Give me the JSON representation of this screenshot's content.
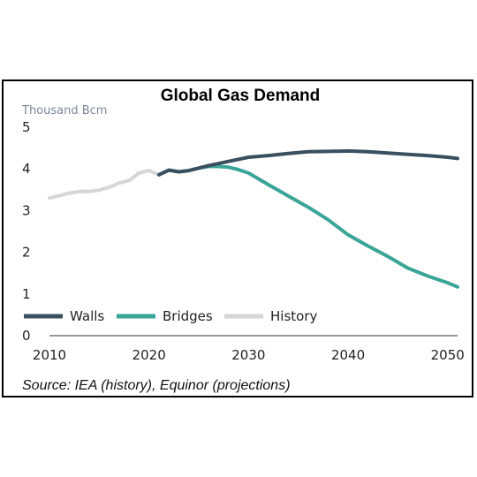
{
  "chart_data": {
    "type": "line",
    "title": "Global Gas Demand",
    "ylabel": "Thousand Bcm",
    "xlabel": "",
    "source": "Source: IEA (history), Equinor (projections)",
    "xlim": [
      2010,
      2051
    ],
    "ylim": [
      0,
      5
    ],
    "xticks": [
      2010,
      2020,
      2030,
      2040,
      2050
    ],
    "yticks": [
      0,
      1,
      2,
      3,
      4,
      5
    ],
    "grid": false,
    "legend_position": "bottom-left",
    "series": [
      {
        "name": "Walls",
        "color": "#3a5060",
        "x": [
          2021,
          2022,
          2023,
          2024,
          2025,
          2026,
          2028,
          2030,
          2032,
          2034,
          2036,
          2038,
          2040,
          2042,
          2044,
          2046,
          2048,
          2050,
          2051
        ],
        "y": [
          3.86,
          3.97,
          3.93,
          3.96,
          4.02,
          4.08,
          4.18,
          4.28,
          4.32,
          4.37,
          4.41,
          4.42,
          4.43,
          4.41,
          4.38,
          4.35,
          4.32,
          4.28,
          4.25
        ]
      },
      {
        "name": "Bridges",
        "color": "#3aa597",
        "x": [
          2021,
          2022,
          2023,
          2024,
          2025,
          2026,
          2027,
          2028,
          2029,
          2030,
          2032,
          2034,
          2036,
          2038,
          2040,
          2042,
          2044,
          2046,
          2048,
          2050,
          2051
        ],
        "y": [
          3.86,
          3.97,
          3.93,
          3.96,
          4.02,
          4.06,
          4.06,
          4.04,
          3.98,
          3.9,
          3.62,
          3.35,
          3.08,
          2.78,
          2.42,
          2.15,
          1.9,
          1.62,
          1.43,
          1.27,
          1.17
        ]
      },
      {
        "name": "History",
        "color": "#d6d6d6",
        "x": [
          2010,
          2011,
          2012,
          2013,
          2014,
          2015,
          2016,
          2017,
          2018,
          2019,
          2020,
          2021
        ],
        "y": [
          3.3,
          3.36,
          3.42,
          3.46,
          3.46,
          3.49,
          3.56,
          3.66,
          3.72,
          3.9,
          3.96,
          3.86
        ]
      }
    ]
  }
}
